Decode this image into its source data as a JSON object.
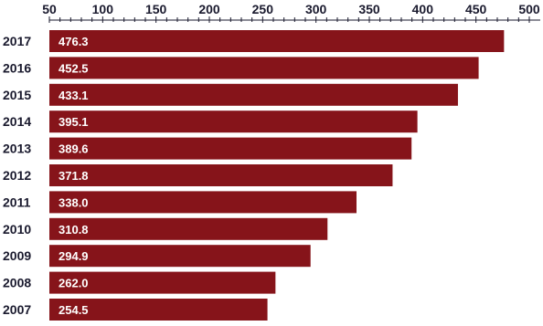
{
  "chart_data": {
    "type": "bar",
    "orientation": "horizontal",
    "categories": [
      "2017",
      "2016",
      "2015",
      "2014",
      "2013",
      "2012",
      "2011",
      "2010",
      "2009",
      "2008",
      "2007"
    ],
    "values": [
      476.3,
      452.5,
      433.1,
      395.1,
      389.6,
      371.8,
      338.0,
      310.8,
      294.9,
      262.0,
      254.5
    ],
    "value_labels": [
      "476.3",
      "452.5",
      "433.1",
      "395.1",
      "389.6",
      "371.8",
      "338.0",
      "310.8",
      "294.9",
      "262.0",
      "254.5"
    ],
    "x_ticks": [
      "50",
      "100",
      "150",
      "200",
      "250",
      "300",
      "350",
      "400",
      "450",
      "500"
    ],
    "xlim": [
      50,
      500
    ],
    "x_axis_position": "top",
    "grid": false,
    "legend": "none",
    "bar_color": "#86141a"
  }
}
